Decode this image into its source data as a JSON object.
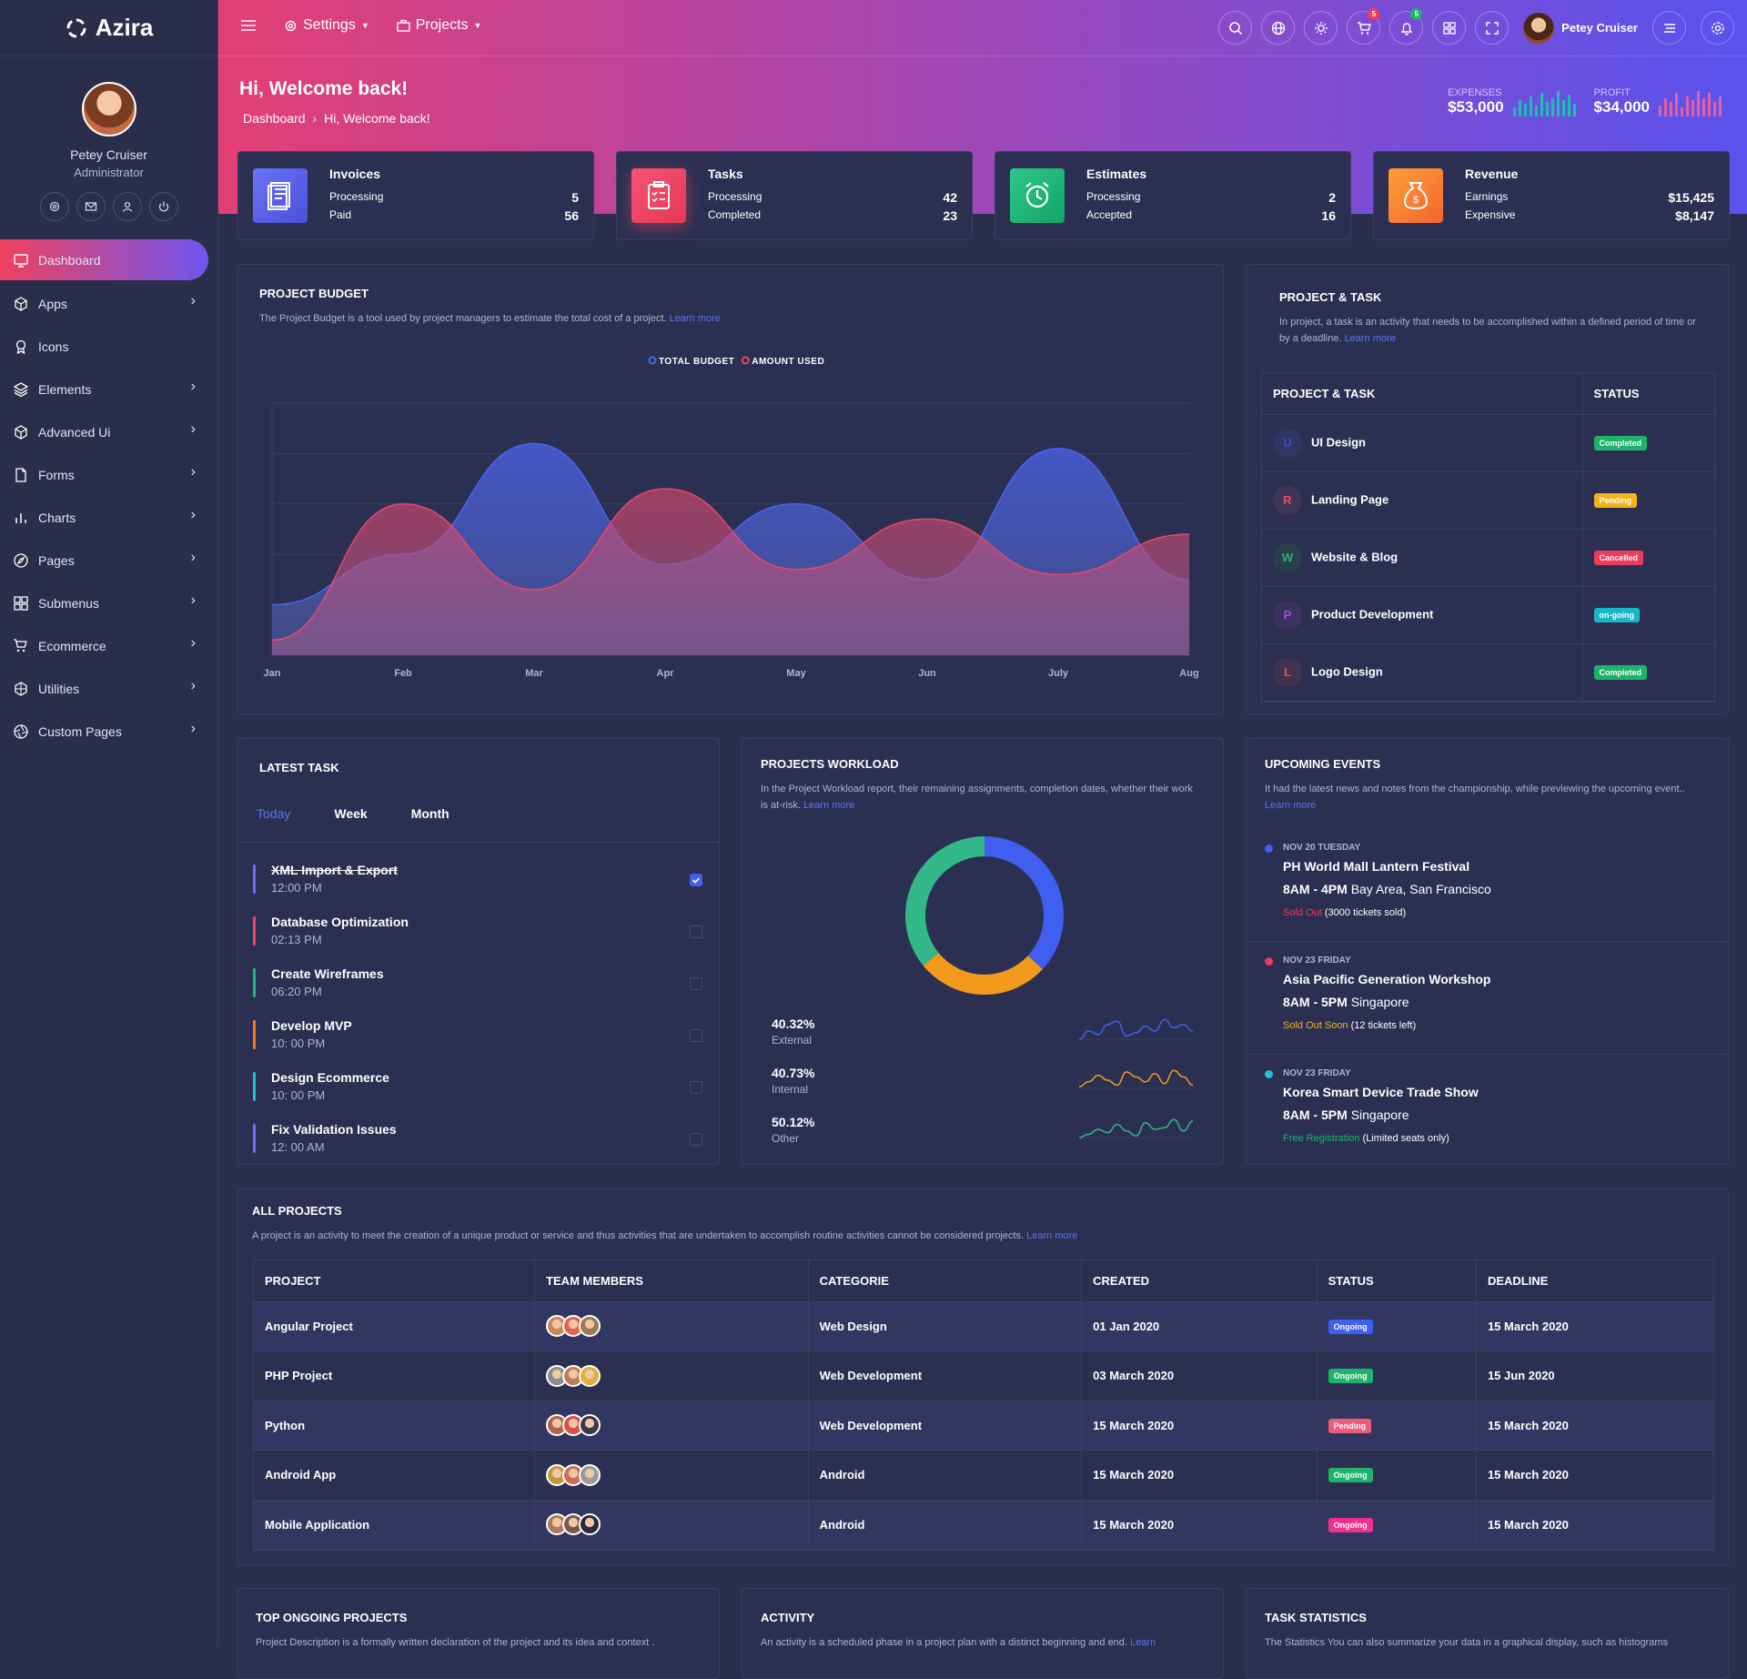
{
  "app": {
    "name": "Azira"
  },
  "sidebar": {
    "user": {
      "name": "Petey Cruiser",
      "role": "Administrator"
    },
    "items": [
      {
        "label": "Dashboard",
        "icon": "monitor-icon"
      },
      {
        "label": "Apps",
        "icon": "cube-icon"
      },
      {
        "label": "Icons",
        "icon": "award-icon"
      },
      {
        "label": "Elements",
        "icon": "layers-icon"
      },
      {
        "label": "Advanced Ui",
        "icon": "box-icon"
      },
      {
        "label": "Forms",
        "icon": "file-icon"
      },
      {
        "label": "Charts",
        "icon": "bar-chart-icon"
      },
      {
        "label": "Pages",
        "icon": "compass-icon"
      },
      {
        "label": "Submenus",
        "icon": "grid-icon"
      },
      {
        "label": "Ecommerce",
        "icon": "cart-icon"
      },
      {
        "label": "Utilities",
        "icon": "hexagon-icon"
      },
      {
        "label": "Custom Pages",
        "icon": "aperture-icon"
      }
    ]
  },
  "topbar": {
    "settings": "Settings",
    "projects": "Projects",
    "cart_count": "5",
    "notif_count": "5",
    "user": "Petey Cruiser"
  },
  "header": {
    "welcome": "Hi, Welcome back!",
    "crumb1": "Dashboard",
    "crumb2": "Hi, Welcome back!",
    "expenses_label": "EXPENSES",
    "expenses": "$53,000",
    "profit_label": "PROFIT",
    "profit": "$34,000"
  },
  "stats": [
    {
      "title": "Invoices",
      "r1": "Processing",
      "v1": "5",
      "r2": "Paid",
      "v2": "56"
    },
    {
      "title": "Tasks",
      "r1": "Processing",
      "v1": "42",
      "r2": "Completed",
      "v2": "23"
    },
    {
      "title": "Estimates",
      "r1": "Processing",
      "v1": "2",
      "r2": "Accepted",
      "v2": "16"
    },
    {
      "title": "Revenue",
      "r1": "Earnings",
      "v1": "$15,425",
      "r2": "Expensive",
      "v2": "$8,147"
    }
  ],
  "budget": {
    "title": "PROJECT BUDGET",
    "desc": "The Project Budget is a tool used by project managers to estimate the total cost of a project.",
    "link": "Learn more"
  },
  "chart_data": {
    "type": "area",
    "x": [
      "Jan",
      "Feb",
      "Mar",
      "Apr",
      "May",
      "Jun",
      "July",
      "Aug"
    ],
    "series": [
      {
        "name": "TOTAL BUDGET",
        "color": "#4a64f0",
        "values": [
          1.0,
          2.0,
          4.2,
          1.8,
          3.0,
          1.5,
          4.1,
          1.5
        ]
      },
      {
        "name": "AMOUNT USED",
        "color": "#e8486a",
        "values": [
          0.3,
          3.0,
          1.3,
          3.3,
          1.7,
          2.7,
          1.6,
          2.4
        ]
      }
    ],
    "ylim": [
      0,
      5
    ],
    "grid": true,
    "legend": "top-center"
  },
  "pt": {
    "title": "PROJECT & TASK",
    "desc": "In project, a task is an activity that needs to be accomplished within a defined period of time or by a deadline.",
    "link": "Learn more",
    "col1": "PROJECT & TASK",
    "col2": "STATUS",
    "rows": [
      {
        "letter": "U",
        "name": "UI Design",
        "status": "Completed",
        "color": "#1db36c",
        "lc": "#3a4fc4",
        "bg": "#2f3663"
      },
      {
        "letter": "R",
        "name": "Landing Page",
        "status": "Pending",
        "color": "#f2b416",
        "lc": "#e84a72",
        "bg": "#3d3456"
      },
      {
        "letter": "W",
        "name": "Website & Blog",
        "status": "Cancelled",
        "color": "#ef3b5b",
        "lc": "#1db36c",
        "bg": "#2a3f4e"
      },
      {
        "letter": "P",
        "name": "Product Development",
        "status": "on-going",
        "color": "#18b7c7",
        "lc": "#a04ed8",
        "bg": "#3a3260"
      },
      {
        "letter": "L",
        "name": "Logo Design",
        "status": "Completed",
        "color": "#1db36c",
        "lc": "#e84a4a",
        "bg": "#40334f"
      }
    ]
  },
  "latest": {
    "title": "LATEST TASK",
    "tabs": [
      "Today",
      "Week",
      "Month"
    ],
    "tasks": [
      {
        "t": "XML Import & Export",
        "tm": "12:00 PM",
        "c": "#6f6cf0",
        "done": true
      },
      {
        "t": "Database Optimization",
        "tm": "02:13 PM",
        "c": "#e8486a",
        "done": false
      },
      {
        "t": "Create Wireframes",
        "tm": "06:20 PM",
        "c": "#22b57a",
        "done": false
      },
      {
        "t": "Develop MVP",
        "tm": "10: 00 PM",
        "c": "#f07a2a",
        "done": false
      },
      {
        "t": "Design Ecommerce",
        "tm": "10: 00 PM",
        "c": "#1bc2d8",
        "done": false
      },
      {
        "t": "Fix Validation Issues",
        "tm": "12: 00 AM",
        "c": "#7b6cf0",
        "done": false
      }
    ]
  },
  "workload": {
    "title": "PROJECTS WORKLOAD",
    "desc": "In the Project Workload report, their remaining assignments, completion dates, whether their work is at-risk.",
    "link": "Learn more",
    "items": [
      {
        "pct": "40.32%",
        "label": "External",
        "color": "#3e5ff0",
        "v": 40.32
      },
      {
        "pct": "40.73%",
        "label": "Internal",
        "color": "#f39a1c",
        "v": 40.73
      },
      {
        "pct": "50.12%",
        "label": "Other",
        "color": "#33b88a",
        "v": 50.12
      }
    ]
  },
  "events": {
    "title": "UPCOMING EVENTS",
    "desc": "It had the latest news and notes from the championship, while previewing the upcoming event..",
    "link": "Learn more",
    "items": [
      {
        "date": "NOV 20 TUESDAY",
        "name": "PH World Mall Lantern Festival",
        "time": "8AM - 4PM",
        "place": "Bay Area, San Francisco",
        "status": "Sold Out",
        "sc": "#ef3b5b",
        "note": "(3000 tickets sold)",
        "dc": "#3e5ff0"
      },
      {
        "date": "NOV 23 FRIDAY",
        "name": "Asia Pacific Generation Workshop",
        "time": "8AM - 5PM",
        "place": "Singapore",
        "status": "Sold Out Soon",
        "sc": "#f2b416",
        "note": "(12 tickets left)",
        "dc": "#ef3b5b"
      },
      {
        "date": "NOV 23 FRIDAY",
        "name": "Korea Smart Device Trade Show",
        "time": "8AM - 5PM",
        "place": "Singapore",
        "status": "Free Registration",
        "sc": "#1db36c",
        "note": "(Limited seats only)",
        "dc": "#1bc2d8"
      }
    ]
  },
  "projects": {
    "title": "ALL PROJECTS",
    "desc": "A project is an activity to meet the creation of a unique product or service and thus activities that are undertaken to accomplish routine activities cannot be considered projects.",
    "link": "Learn more",
    "cols": [
      "PROJECT",
      "TEAM MEMBERS",
      "CATEGORIE",
      "CREATED",
      "STATUS",
      "DEADLINE"
    ],
    "rows": [
      {
        "p": "Angular Project",
        "c": "Web Design",
        "cr": "01 Jan 2020",
        "s": "Ongoing",
        "sc": "#3e5ff0",
        "d": "15 March 2020"
      },
      {
        "p": "PHP Project",
        "c": "Web Development",
        "cr": "03 March 2020",
        "s": "Ongoing",
        "sc": "#1db36c",
        "d": "15 Jun 2020"
      },
      {
        "p": "Python",
        "c": "Web Development",
        "cr": "15 March 2020",
        "s": "Pending",
        "sc": "#ef5b7b",
        "d": "15 March 2020"
      },
      {
        "p": "Android App",
        "c": "Android",
        "cr": "15 March 2020",
        "s": "Ongoing",
        "sc": "#1db36c",
        "d": "15 March 2020"
      },
      {
        "p": "Mobile Application",
        "c": "Android",
        "cr": "15 March 2020",
        "s": "Ongoing",
        "sc": "#f0318f",
        "d": "15 March 2020"
      }
    ]
  },
  "bottom": {
    "b1": "TOP ONGOING PROJECTS",
    "d1": "Project Description is a formally written declaration of the project and its idea and context .",
    "b2": "ACTIVITY",
    "d2": "An activity is a scheduled phase in a project plan with a distinct beginning and end.",
    "l2": "Learn",
    "b3": "TASK STATISTICS",
    "d3": "The Statistics You can also summarize your data in a graphical display, such as histograms"
  }
}
